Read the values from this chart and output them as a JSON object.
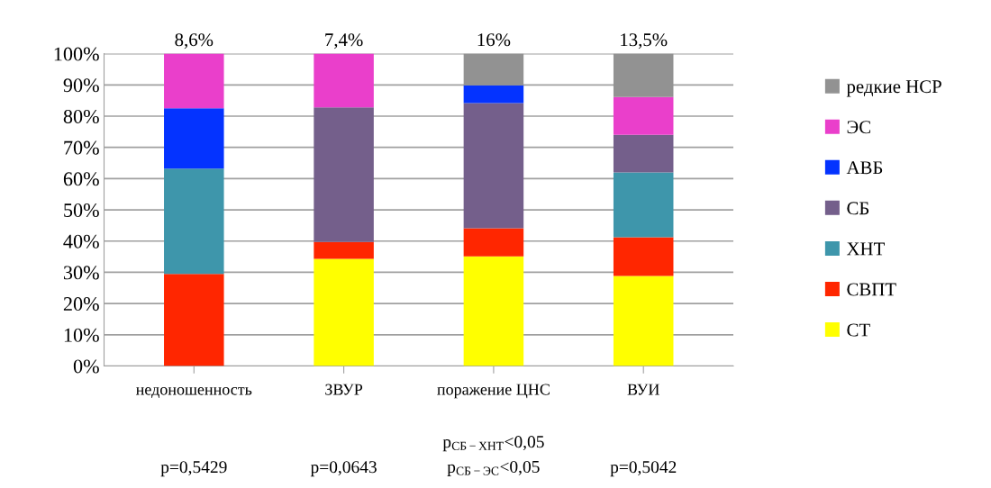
{
  "chart_data": {
    "type": "bar",
    "stacked": true,
    "categories": [
      "недоношенность",
      "ЗВУР",
      "поражение ЦНС",
      "ВУИ"
    ],
    "series": [
      {
        "name": "СТ",
        "color": "#ffff00",
        "values": [
          0,
          34.3,
          35.1,
          28.8
        ]
      },
      {
        "name": "СВПТ",
        "color": "#ff2600",
        "values": [
          29.5,
          5.4,
          9.0,
          12.4
        ]
      },
      {
        "name": "ХНТ",
        "color": "#3e96ab",
        "values": [
          33.7,
          0,
          0,
          20.8
        ]
      },
      {
        "name": "СБ",
        "color": "#745f8b",
        "values": [
          0,
          43.1,
          40.1,
          12.0
        ]
      },
      {
        "name": "АВБ",
        "color": "#0433ff",
        "values": [
          19.3,
          0,
          5.7,
          0
        ]
      },
      {
        "name": "ЭС",
        "color": "#ea3fcb",
        "values": [
          17.5,
          17.2,
          0,
          12.1
        ]
      },
      {
        "name": "редкие НСР",
        "color": "#929292",
        "values": [
          0,
          0,
          10.1,
          13.9
        ]
      }
    ],
    "ylim": [
      0,
      100
    ],
    "yticks": [
      {
        "value": 0,
        "label": "0%"
      },
      {
        "value": 10,
        "label": "10%"
      },
      {
        "value": 20,
        "label": "20%"
      },
      {
        "value": 30,
        "label": "30%"
      },
      {
        "value": 40,
        "label": "40%"
      },
      {
        "value": 50,
        "label": "50%"
      },
      {
        "value": 60,
        "label": "60%"
      },
      {
        "value": 70,
        "label": "70%"
      },
      {
        "value": 80,
        "label": "80%"
      },
      {
        "value": 90,
        "label": "90%"
      },
      {
        "value": 100,
        "label": "100%"
      }
    ],
    "grid": "y",
    "legend": "right",
    "annotations": [
      {
        "text": "8,6%",
        "x": "недоношенность",
        "y": 100
      },
      {
        "text": "7,4%",
        "x": "ЗВУР",
        "y": 100
      },
      {
        "text": "16%",
        "x": "поражение ЦНС",
        "y": 100
      },
      {
        "text": "13,5%",
        "x": "ВУИ",
        "y": 100
      },
      "p=0,5429",
      "p=0,0643",
      "p$_{СБ−ХНТ}$<0,05",
      "p$_{СБ−ЭС}$<0,05",
      "p=0,5042"
    ]
  }
}
